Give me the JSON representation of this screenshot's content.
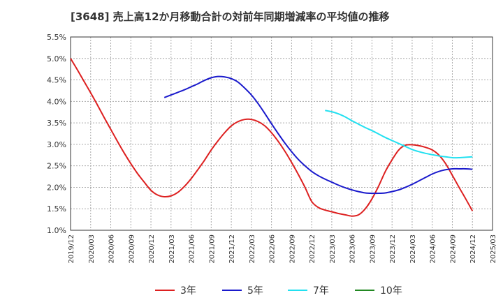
{
  "title": "[3648]  売上高12か月移動合計の対前年同期増減率の平均値の推移",
  "chart_data": {
    "type": "line",
    "title": "[3648]  売上高12か月移動合計の対前年同期増減率の平均値の推移",
    "xlabel": "",
    "ylabel": "",
    "ylim": [
      1.0,
      5.5
    ],
    "yticks": [
      "1.0%",
      "1.5%",
      "2.0%",
      "2.5%",
      "3.0%",
      "3.5%",
      "4.0%",
      "4.5%",
      "5.0%",
      "5.5%"
    ],
    "xticks": [
      "2019/12",
      "2020/03",
      "2020/06",
      "2020/09",
      "2020/12",
      "2021/03",
      "2021/06",
      "2021/09",
      "2021/12",
      "2022/03",
      "2022/06",
      "2022/09",
      "2022/12",
      "2023/03",
      "2023/06",
      "2023/09",
      "2023/12",
      "2024/03",
      "2024/06",
      "2024/09",
      "2024/12",
      "2025/03"
    ],
    "grid": true,
    "legend_position": "bottom",
    "series": [
      {
        "name": "3年",
        "color": "#dd2020",
        "points": [
          [
            "2019/12",
            5.0
          ],
          [
            "2020/01",
            4.74
          ],
          [
            "2020/02",
            4.47
          ],
          [
            "2020/03",
            4.2
          ],
          [
            "2020/04",
            3.92
          ],
          [
            "2020/05",
            3.63
          ],
          [
            "2020/06",
            3.35
          ],
          [
            "2020/07",
            3.07
          ],
          [
            "2020/08",
            2.8
          ],
          [
            "2020/09",
            2.55
          ],
          [
            "2020/10",
            2.32
          ],
          [
            "2020/11",
            2.12
          ],
          [
            "2020/12",
            1.93
          ],
          [
            "2021/01",
            1.82
          ],
          [
            "2021/02",
            1.78
          ],
          [
            "2021/03",
            1.8
          ],
          [
            "2021/04",
            1.88
          ],
          [
            "2021/05",
            2.02
          ],
          [
            "2021/06",
            2.2
          ],
          [
            "2021/07",
            2.41
          ],
          [
            "2021/08",
            2.63
          ],
          [
            "2021/09",
            2.87
          ],
          [
            "2021/10",
            3.08
          ],
          [
            "2021/11",
            3.27
          ],
          [
            "2021/12",
            3.43
          ],
          [
            "2022/01",
            3.53
          ],
          [
            "2022/02",
            3.58
          ],
          [
            "2022/03",
            3.58
          ],
          [
            "2022/04",
            3.53
          ],
          [
            "2022/05",
            3.43
          ],
          [
            "2022/06",
            3.27
          ],
          [
            "2022/07",
            3.07
          ],
          [
            "2022/08",
            2.84
          ],
          [
            "2022/09",
            2.58
          ],
          [
            "2022/10",
            2.3
          ],
          [
            "2022/11",
            2.0
          ],
          [
            "2022/12",
            1.67
          ],
          [
            "2023/01",
            1.53
          ],
          [
            "2023/02",
            1.47
          ],
          [
            "2023/03",
            1.43
          ],
          [
            "2023/04",
            1.39
          ],
          [
            "2023/05",
            1.36
          ],
          [
            "2023/06",
            1.33
          ],
          [
            "2023/07",
            1.36
          ],
          [
            "2023/08",
            1.5
          ],
          [
            "2023/09",
            1.73
          ],
          [
            "2023/10",
            2.03
          ],
          [
            "2023/11",
            2.37
          ],
          [
            "2023/12",
            2.64
          ],
          [
            "2024/01",
            2.87
          ],
          [
            "2024/02",
            2.98
          ],
          [
            "2024/03",
            2.99
          ],
          [
            "2024/04",
            2.97
          ],
          [
            "2024/05",
            2.93
          ],
          [
            "2024/06",
            2.87
          ],
          [
            "2024/07",
            2.75
          ],
          [
            "2024/08",
            2.55
          ],
          [
            "2024/09",
            2.28
          ],
          [
            "2024/10",
            2.0
          ],
          [
            "2024/11",
            1.73
          ],
          [
            "2024/12",
            1.45
          ]
        ]
      },
      {
        "name": "5年",
        "color": "#1a1acc",
        "points": [
          [
            "2021/02",
            4.09
          ],
          [
            "2021/03",
            4.15
          ],
          [
            "2021/04",
            4.21
          ],
          [
            "2021/05",
            4.27
          ],
          [
            "2021/06",
            4.34
          ],
          [
            "2021/07",
            4.41
          ],
          [
            "2021/08",
            4.49
          ],
          [
            "2021/09",
            4.55
          ],
          [
            "2021/10",
            4.58
          ],
          [
            "2021/11",
            4.57
          ],
          [
            "2021/12",
            4.53
          ],
          [
            "2022/01",
            4.45
          ],
          [
            "2022/02",
            4.31
          ],
          [
            "2022/03",
            4.15
          ],
          [
            "2022/04",
            3.95
          ],
          [
            "2022/05",
            3.72
          ],
          [
            "2022/06",
            3.48
          ],
          [
            "2022/07",
            3.25
          ],
          [
            "2022/08",
            3.03
          ],
          [
            "2022/09",
            2.83
          ],
          [
            "2022/10",
            2.65
          ],
          [
            "2022/11",
            2.5
          ],
          [
            "2022/12",
            2.37
          ],
          [
            "2023/01",
            2.27
          ],
          [
            "2023/02",
            2.19
          ],
          [
            "2023/03",
            2.12
          ],
          [
            "2023/04",
            2.05
          ],
          [
            "2023/05",
            1.99
          ],
          [
            "2023/06",
            1.94
          ],
          [
            "2023/07",
            1.9
          ],
          [
            "2023/08",
            1.87
          ],
          [
            "2023/09",
            1.86
          ],
          [
            "2023/10",
            1.86
          ],
          [
            "2023/11",
            1.87
          ],
          [
            "2023/12",
            1.9
          ],
          [
            "2024/01",
            1.94
          ],
          [
            "2024/02",
            2.0
          ],
          [
            "2024/03",
            2.07
          ],
          [
            "2024/04",
            2.15
          ],
          [
            "2024/05",
            2.23
          ],
          [
            "2024/06",
            2.31
          ],
          [
            "2024/07",
            2.37
          ],
          [
            "2024/08",
            2.41
          ],
          [
            "2024/09",
            2.43
          ],
          [
            "2024/10",
            2.43
          ],
          [
            "2024/11",
            2.43
          ],
          [
            "2024/12",
            2.42
          ]
        ]
      },
      {
        "name": "7年",
        "color": "#22e0f0",
        "points": [
          [
            "2023/02",
            3.79
          ],
          [
            "2023/03",
            3.76
          ],
          [
            "2023/04",
            3.71
          ],
          [
            "2023/05",
            3.64
          ],
          [
            "2023/06",
            3.55
          ],
          [
            "2023/07",
            3.47
          ],
          [
            "2023/08",
            3.39
          ],
          [
            "2023/09",
            3.32
          ],
          [
            "2023/10",
            3.24
          ],
          [
            "2023/11",
            3.16
          ],
          [
            "2023/12",
            3.09
          ],
          [
            "2024/01",
            3.02
          ],
          [
            "2024/02",
            2.95
          ],
          [
            "2024/03",
            2.88
          ],
          [
            "2024/04",
            2.83
          ],
          [
            "2024/05",
            2.79
          ],
          [
            "2024/06",
            2.76
          ],
          [
            "2024/07",
            2.73
          ],
          [
            "2024/08",
            2.71
          ],
          [
            "2024/09",
            2.69
          ],
          [
            "2024/10",
            2.69
          ],
          [
            "2024/11",
            2.7
          ],
          [
            "2024/12",
            2.71
          ]
        ]
      },
      {
        "name": "10年",
        "color": "#228822",
        "points": []
      }
    ]
  }
}
